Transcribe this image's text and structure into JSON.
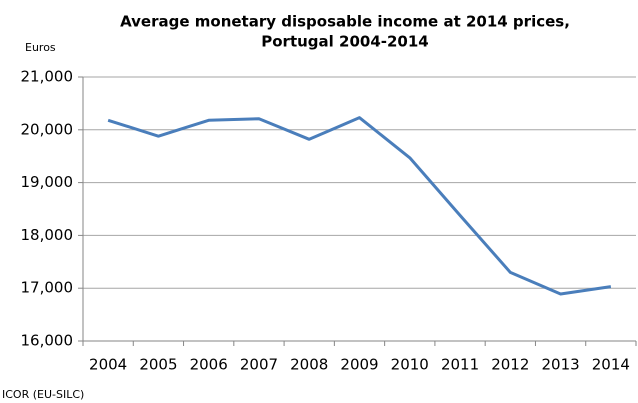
{
  "chart_data": {
    "type": "line",
    "title": [
      "Average monetary disposable income at 2014 prices,",
      "Portugal 2004-2014"
    ],
    "y_label": "Euros",
    "source": "ICOR (EU-SILC)",
    "categories": [
      "2004",
      "2005",
      "2006",
      "2007",
      "2008",
      "2009",
      "2010",
      "2011",
      "2012",
      "2013",
      "2014"
    ],
    "values": [
      20180,
      19880,
      20180,
      20210,
      19820,
      20230,
      19470,
      18380,
      17300,
      16890,
      17030
    ],
    "color": "#4a7ebb",
    "ylim": [
      16000,
      21000
    ],
    "yticks": [
      {
        "value": 16000,
        "label": "16,000"
      },
      {
        "value": 17000,
        "label": "17,000"
      },
      {
        "value": 18000,
        "label": "18,000"
      },
      {
        "value": 19000,
        "label": "19,000"
      },
      {
        "value": 20000,
        "label": "20,000"
      },
      {
        "value": 21000,
        "label": "21,000"
      }
    ],
    "grid": true
  }
}
